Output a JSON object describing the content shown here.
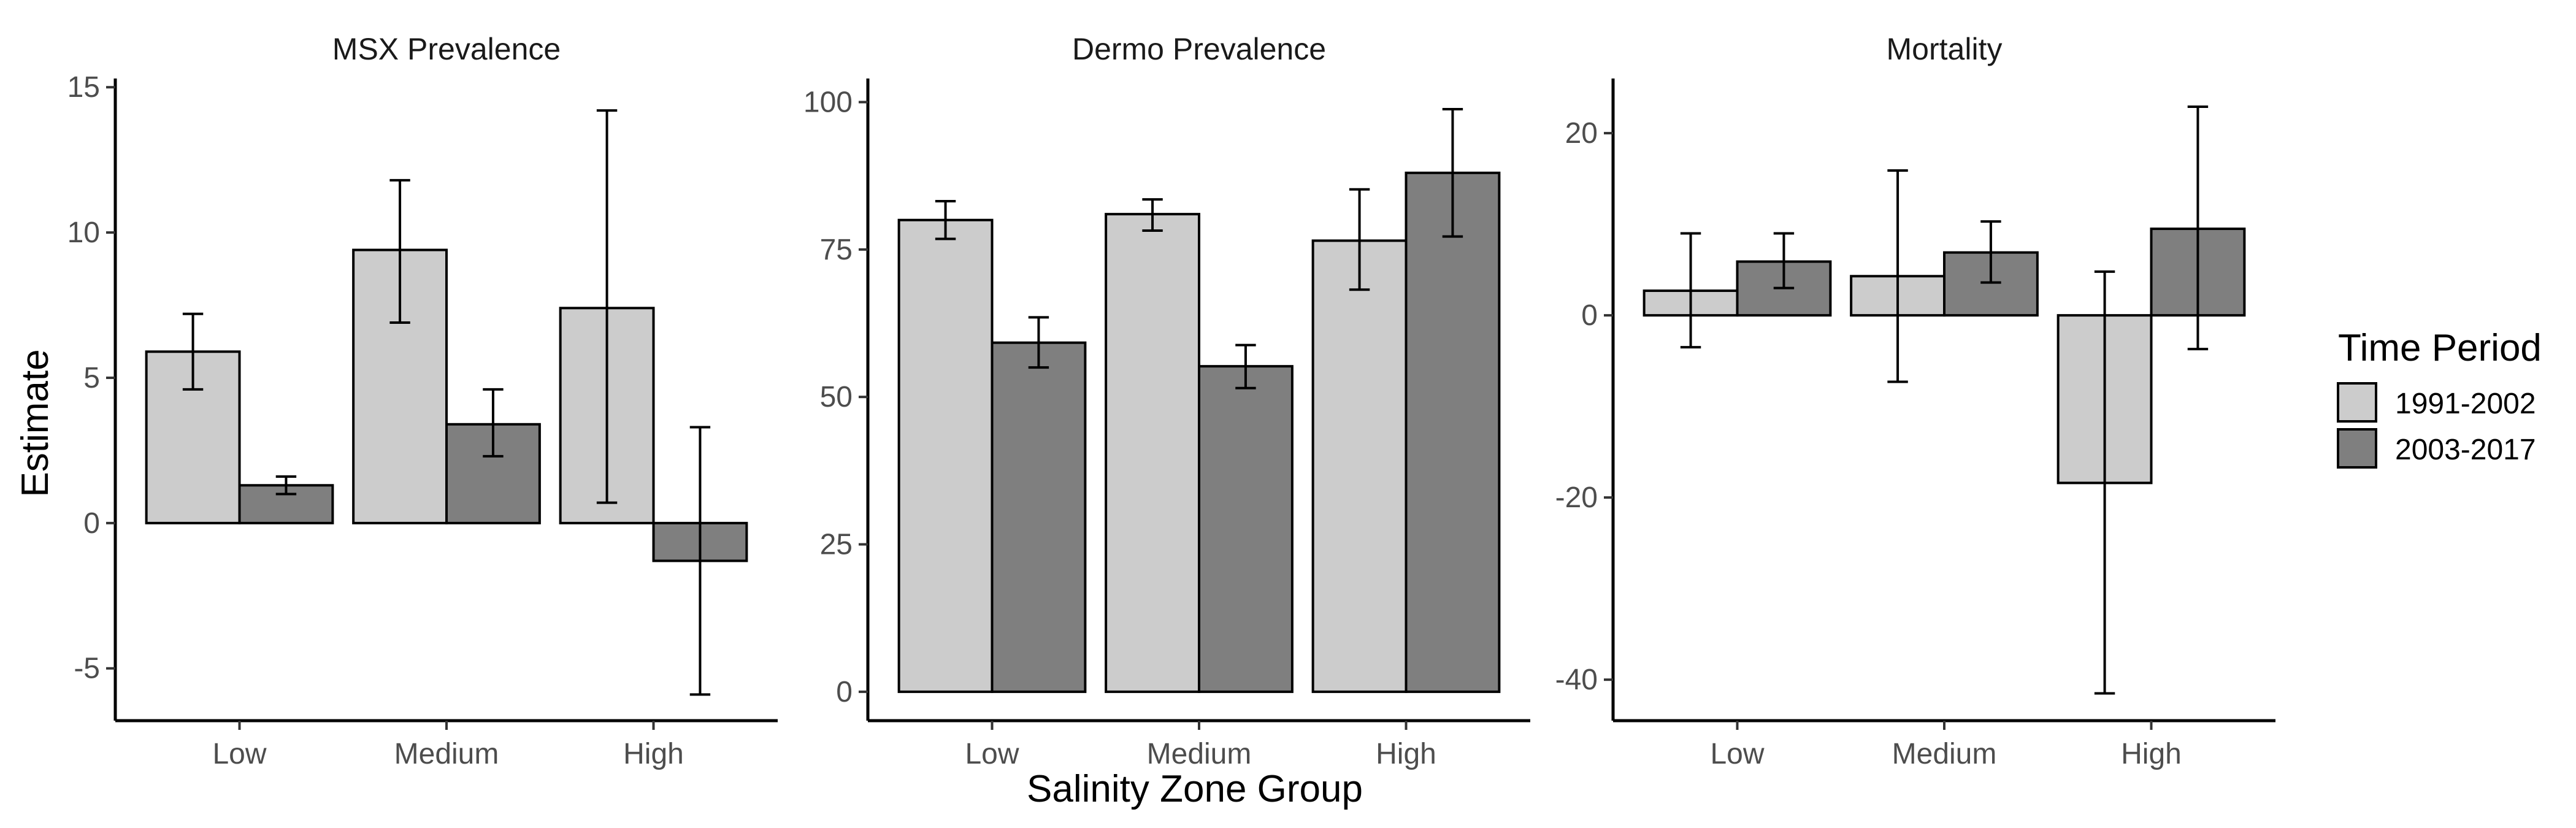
{
  "colors": {
    "1991-2002": "#cccccc",
    "2003-2017": "#7f7f7f"
  },
  "legend": {
    "title": "Time Period",
    "placement": "right",
    "entries": [
      "1991-2002",
      "2003-2017"
    ]
  },
  "axes": {
    "ylabel": "Estimate",
    "xlabel": "Salinity Zone Group"
  },
  "chart_data": [
    {
      "type": "bar",
      "title": "MSX Prevalence",
      "categories": [
        "Low",
        "Medium",
        "High"
      ],
      "ylim": [
        -6.8,
        15.3
      ],
      "yticks": [
        -5,
        0,
        5,
        10,
        15
      ],
      "series": [
        {
          "name": "1991-2002",
          "values": [
            5.9,
            9.4,
            7.4
          ],
          "lower": [
            4.6,
            6.9,
            0.7
          ],
          "upper": [
            7.2,
            11.8,
            14.2
          ]
        },
        {
          "name": "2003-2017",
          "values": [
            1.3,
            3.4,
            -1.3
          ],
          "lower": [
            1.0,
            2.3,
            -5.9
          ],
          "upper": [
            1.6,
            4.6,
            3.3
          ]
        }
      ]
    },
    {
      "type": "bar",
      "title": "Dermo Prevalence",
      "categories": [
        "Low",
        "Medium",
        "High"
      ],
      "ylim": [
        -4.9,
        104
      ],
      "yticks": [
        0,
        25,
        50,
        75,
        100
      ],
      "series": [
        {
          "name": "1991-2002",
          "values": [
            80,
            81,
            76.5
          ],
          "lower": [
            76.8,
            78.2,
            68.2
          ],
          "upper": [
            83.2,
            83.5,
            85.2
          ]
        },
        {
          "name": "2003-2017",
          "values": [
            59.2,
            55.2,
            88
          ],
          "lower": [
            55.0,
            51.5,
            77.2
          ],
          "upper": [
            63.5,
            58.8,
            98.8
          ]
        }
      ]
    },
    {
      "type": "bar",
      "title": "Mortality",
      "categories": [
        "Low",
        "Medium",
        "High"
      ],
      "ylim": [
        -44.5,
        26
      ],
      "yticks": [
        -40,
        -20,
        0,
        20
      ],
      "series": [
        {
          "name": "1991-2002",
          "values": [
            2.7,
            4.3,
            -18.4
          ],
          "lower": [
            -3.5,
            -7.3,
            -41.5
          ],
          "upper": [
            9.0,
            15.9,
            4.8
          ]
        },
        {
          "name": "2003-2017",
          "values": [
            5.9,
            6.9,
            9.5
          ],
          "lower": [
            3.0,
            3.6,
            -3.7
          ],
          "upper": [
            9.0,
            10.3,
            22.9
          ]
        }
      ]
    }
  ]
}
